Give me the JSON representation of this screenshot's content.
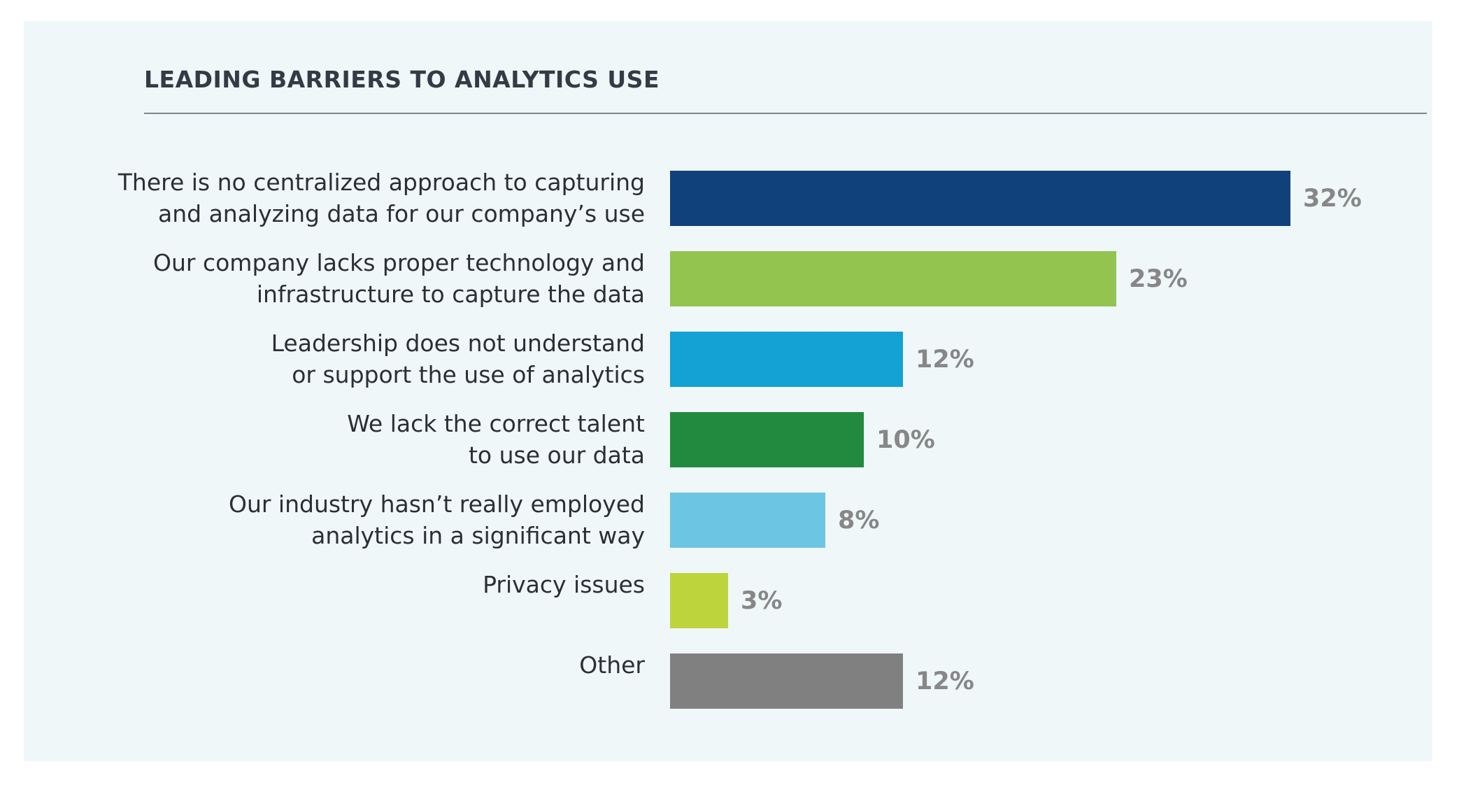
{
  "chart_data": {
    "type": "bar",
    "orientation": "horizontal",
    "title": "LEADING BARRIERS TO ANALYTICS USE",
    "xlabel": "",
    "ylabel": "",
    "xlim": [
      0,
      32
    ],
    "grid": false,
    "legend": "none",
    "categories": [
      [
        "There is no centralized approach to capturing",
        "and analyzing data for our company’s use"
      ],
      [
        "Our company lacks proper technology and",
        "infrastructure to capture the data"
      ],
      [
        "Leadership does not understand",
        "or support the use of analytics"
      ],
      [
        "We lack the correct talent",
        "to use our data"
      ],
      [
        "Our industry hasn’t really employed",
        "analytics in a significant way"
      ],
      [
        "Privacy issues"
      ],
      [
        "Other"
      ]
    ],
    "values": [
      32,
      23,
      12,
      10,
      8,
      3,
      12
    ],
    "value_labels": [
      "32%",
      "23%",
      "12%",
      "10%",
      "8%",
      "3%",
      "12%"
    ],
    "colors": [
      "#10417a",
      "#92c44f",
      "#14a1d4",
      "#218a3e",
      "#6cc5e2",
      "#bdd43c",
      "#808080"
    ]
  }
}
